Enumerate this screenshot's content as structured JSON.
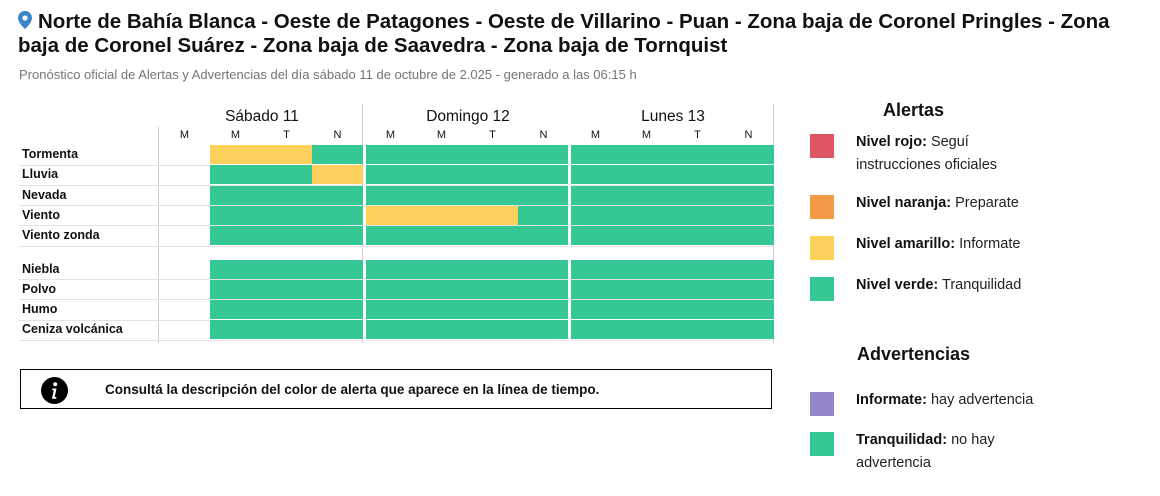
{
  "title": "Norte de Bahía Blanca - Oeste de Patagones - Oeste de Villarino - Puan - Zona baja de Coronel Pringles - Zona baja de Coronel Suárez - Zona baja de Saavedra - Zona baja de Tornquist",
  "subtitle": "Pronóstico oficial de Alertas y Advertencias del día sábado 11 de octubre de 2.025 - generado a las 06:15 h",
  "colors": {
    "rojo": "#dd5565",
    "naranja": "#f39a46",
    "amarillo": "#fdd25c",
    "verde": "#35c893",
    "violeta": "#9486c8"
  },
  "timeline": {
    "days": [
      {
        "label": "Sábado 11",
        "periods": [
          "M",
          "M",
          "T",
          "N"
        ]
      },
      {
        "label": "Domingo 12",
        "periods": [
          "M",
          "M",
          "T",
          "N"
        ]
      },
      {
        "label": "Lunes 13",
        "periods": [
          "M",
          "M",
          "T",
          "N"
        ]
      }
    ],
    "alert_rows": [
      {
        "label": "Tormenta",
        "levels": [
          "none",
          "amarillo",
          "amarillo",
          "verde",
          "verde",
          "verde",
          "verde",
          "verde",
          "verde",
          "verde",
          "verde",
          "verde"
        ]
      },
      {
        "label": "Lluvia",
        "levels": [
          "none",
          "verde",
          "verde",
          "amarillo",
          "verde",
          "verde",
          "verde",
          "verde",
          "verde",
          "verde",
          "verde",
          "verde"
        ]
      },
      {
        "label": "Nevada",
        "levels": [
          "none",
          "verde",
          "verde",
          "verde",
          "verde",
          "verde",
          "verde",
          "verde",
          "verde",
          "verde",
          "verde",
          "verde"
        ]
      },
      {
        "label": "Viento",
        "levels": [
          "none",
          "verde",
          "verde",
          "verde",
          "amarillo",
          "amarillo",
          "amarillo",
          "verde",
          "verde",
          "verde",
          "verde",
          "verde"
        ]
      },
      {
        "label": "Viento zonda",
        "levels": [
          "none",
          "verde",
          "verde",
          "verde",
          "verde",
          "verde",
          "verde",
          "verde",
          "verde",
          "verde",
          "verde",
          "verde"
        ]
      }
    ],
    "warning_rows": [
      {
        "label": "Niebla",
        "levels": [
          "none",
          "verde",
          "verde",
          "verde",
          "verde",
          "verde",
          "verde",
          "verde",
          "verde",
          "verde",
          "verde",
          "verde"
        ]
      },
      {
        "label": "Polvo",
        "levels": [
          "none",
          "verde",
          "verde",
          "verde",
          "verde",
          "verde",
          "verde",
          "verde",
          "verde",
          "verde",
          "verde",
          "verde"
        ]
      },
      {
        "label": "Humo",
        "levels": [
          "none",
          "verde",
          "verde",
          "verde",
          "verde",
          "verde",
          "verde",
          "verde",
          "verde",
          "verde",
          "verde",
          "verde"
        ]
      },
      {
        "label": "Ceniza volcánica",
        "levels": [
          "none",
          "verde",
          "verde",
          "verde",
          "verde",
          "verde",
          "verde",
          "verde",
          "verde",
          "verde",
          "verde",
          "verde"
        ]
      }
    ]
  },
  "info_text": "Consultá la descripción del color de alerta que aparece en la línea de tiempo.",
  "legend": {
    "alertas_title": "Alertas",
    "alertas": [
      {
        "name": "Nivel rojo:",
        "desc": "Seguí instrucciones oficiales",
        "color": "#dd5565"
      },
      {
        "name": "Nivel naranja:",
        "desc": "Preparate",
        "color": "#f39a46"
      },
      {
        "name": "Nivel amarillo:",
        "desc": "Informate",
        "color": "#fdd25c"
      },
      {
        "name": "Nivel verde:",
        "desc": "Tranquilidad",
        "color": "#35c893"
      }
    ],
    "advertencias_title": "Advertencias",
    "advertencias": [
      {
        "name": "Informate:",
        "desc": "hay advertencia",
        "color": "#9486c8"
      },
      {
        "name": "Tranquilidad:",
        "desc": "no hay advertencia",
        "color": "#35c893"
      }
    ]
  }
}
